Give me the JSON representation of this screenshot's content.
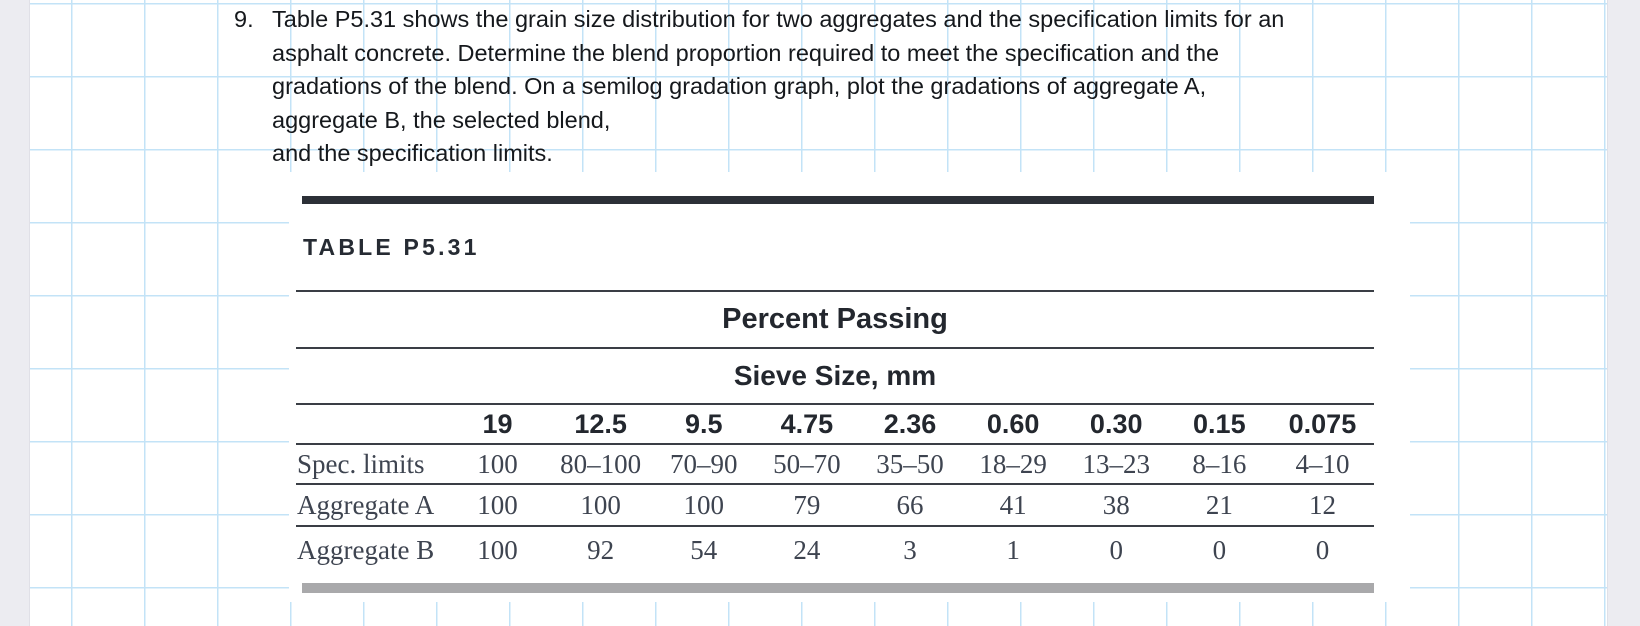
{
  "problem": {
    "number": "9.",
    "lines": [
      "Table P5.31 shows the grain size distribution for two aggregates and the specification limits for an",
      "asphalt concrete. Determine the blend proportion required to meet the specification and the",
      "gradations of the blend. On a semilog gradation graph, plot the gradations of aggregate A,",
      "aggregate B, the selected blend,",
      "and the specification limits."
    ]
  },
  "table": {
    "title": "TABLE P5.31",
    "group_header": "Percent Passing",
    "subheader": "Sieve Size, mm",
    "sieve_sizes": [
      "19",
      "12.5",
      "9.5",
      "4.75",
      "2.36",
      "0.60",
      "0.30",
      "0.15",
      "0.075"
    ],
    "rows": [
      {
        "label": "Spec. limits",
        "values": [
          "100",
          "80–100",
          "70–90",
          "50–70",
          "35–50",
          "18–29",
          "13–23",
          "8–16",
          "4–10"
        ]
      },
      {
        "label": "Aggregate A",
        "values": [
          "100",
          "100",
          "100",
          "79",
          "66",
          "41",
          "38",
          "21",
          "12"
        ]
      },
      {
        "label": "Aggregate B",
        "values": [
          "100",
          "92",
          "54",
          "24",
          "3",
          "1",
          "0",
          "0",
          "0"
        ]
      }
    ]
  },
  "colors": {
    "grid_line_blue": "#c3e3f7",
    "margin_strip_gray": "#ececf1",
    "table_top_bar": "#2c3037",
    "table_bottom_bar": "#a9a9ab",
    "table_rule": "#3a3e45",
    "heading_text": "#23272e",
    "serif_body_text": "#3e4450",
    "paragraph_text": "#15181c"
  }
}
